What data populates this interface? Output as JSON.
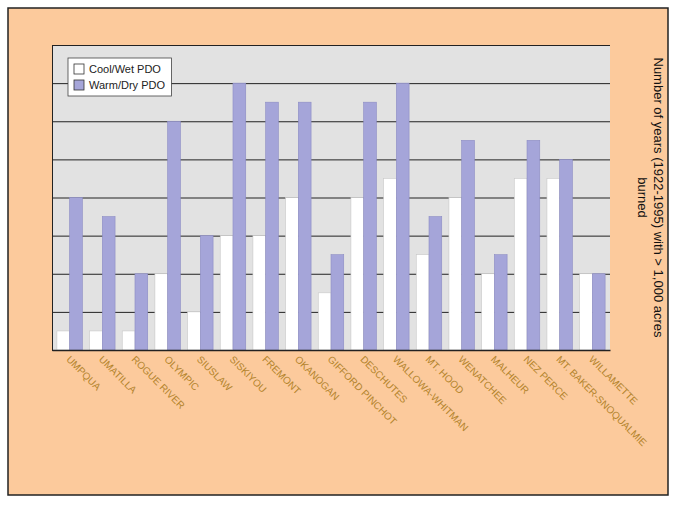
{
  "chart_data": {
    "type": "bar",
    "categories": [
      "UMPQUA",
      "UMATILLA",
      "ROGUE RIVER",
      "OLYMPIC",
      "SIUSLAW",
      "SISKIYOU",
      "FREMONT",
      "OKANOGAN",
      "GIFFORD PINCHOT",
      "DESCHUTES",
      "WALLOWA-WHITMAN",
      "MT. HOOD",
      "WENATCHEE",
      "MALHEUR",
      "NEZ PERCE",
      "MT. BAKER-SNOQUALMIE",
      "WILLAMETTE"
    ],
    "series": [
      {
        "name": "Cool/Wet PDO",
        "color": "#ffffff",
        "values": [
          0.5,
          0.5,
          0.5,
          2,
          1,
          3,
          3,
          4,
          1.5,
          4,
          4.5,
          2.5,
          4,
          2,
          4.5,
          4.5,
          2
        ]
      },
      {
        "name": "Warm/Dry PDO",
        "color": "#a5a5d9",
        "values": [
          4,
          3.5,
          2,
          6,
          3,
          7,
          6.5,
          6.5,
          2.5,
          6.5,
          7,
          3.5,
          5.5,
          2.5,
          5.5,
          5,
          2
        ]
      }
    ],
    "ylabel": "Number of years (1922-1995) with > 1,000 acres burned",
    "ylim": [
      0,
      8
    ],
    "yticks": [
      0,
      1,
      2,
      3,
      4,
      5,
      6,
      7,
      8
    ],
    "grid": true,
    "legend": "upper left",
    "tick_labels": "x"
  }
}
